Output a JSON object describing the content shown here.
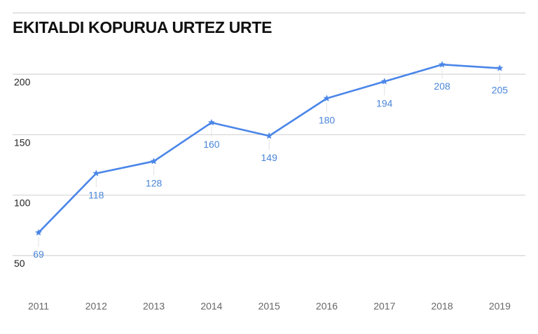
{
  "chart_data": {
    "type": "line",
    "title": "EKITALDI KOPURUA URTEZ URTE",
    "x": [
      "2011",
      "2012",
      "2013",
      "2014",
      "2015",
      "2016",
      "2017",
      "2018",
      "2019"
    ],
    "values": [
      69,
      118,
      128,
      160,
      149,
      180,
      194,
      208,
      205
    ],
    "data_labels": [
      "69",
      "118",
      "128",
      "160",
      "149",
      "180",
      "194",
      "208",
      "205"
    ],
    "yticks": [
      50,
      100,
      150,
      200
    ],
    "ytick_labels": [
      "50",
      "100",
      "150",
      "200"
    ],
    "ylim": [
      50,
      220
    ],
    "grid": true,
    "marker": "star",
    "line_color": "#4a86e8",
    "label_color": "#4a86d8",
    "grid_color": "#d4d4d4"
  }
}
